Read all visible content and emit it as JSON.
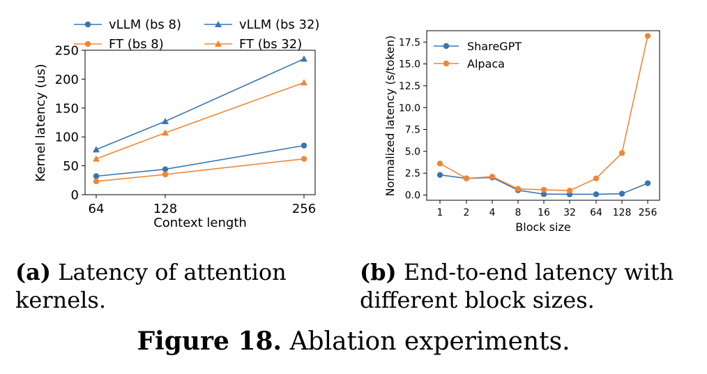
{
  "chart_data": [
    {
      "type": "line",
      "xlabel": "Context length",
      "ylabel": "Kernel latency (us)",
      "categories": [
        "64",
        "128",
        "256"
      ],
      "ylim": [
        0,
        250
      ],
      "yticks": [
        "0",
        "50",
        "100",
        "150",
        "200",
        "250"
      ],
      "series": [
        {
          "name": "vLLM (bs 8)",
          "values": [
            32,
            44,
            85
          ],
          "color": "#3b75af",
          "marker": "circle"
        },
        {
          "name": "FT (bs 8)",
          "values": [
            23,
            35,
            62
          ],
          "color": "#ef8636",
          "marker": "circle"
        },
        {
          "name": "vLLM (bs 32)",
          "values": [
            78,
            127,
            235
          ],
          "color": "#3b75af",
          "marker": "triangle"
        },
        {
          "name": "FT (bs 32)",
          "values": [
            62,
            107,
            194
          ],
          "color": "#ef8636",
          "marker": "triangle"
        }
      ],
      "legend": "top, outside (2 columns)"
    },
    {
      "type": "line",
      "xlabel": "Block size",
      "ylabel": "Normalized latency (s/token)",
      "categories": [
        "1",
        "2",
        "4",
        "8",
        "16",
        "32",
        "64",
        "128",
        "256"
      ],
      "ylim": [
        -0.6,
        18.8
      ],
      "yticks": [
        "0.0",
        "2.5",
        "5.0",
        "7.5",
        "10.0",
        "12.5",
        "15.0",
        "17.5"
      ],
      "series": [
        {
          "name": "ShareGPT",
          "values": [
            2.3,
            1.9,
            2.0,
            0.55,
            0.1,
            0.08,
            0.08,
            0.15,
            1.35
          ],
          "color": "#3b75af",
          "marker": "circle"
        },
        {
          "name": "Alpaca",
          "values": [
            3.6,
            1.9,
            2.1,
            0.7,
            0.6,
            0.5,
            1.9,
            4.8,
            18.2
          ],
          "color": "#ef8636",
          "marker": "circle"
        }
      ],
      "legend": "top-left"
    }
  ],
  "captions": {
    "a_label": "(a)",
    "a_text": "Latency of attention kernels.",
    "b_label": "(b)",
    "b_text": "End-to-end latency with different block sizes.",
    "fig_label": "Figure 18.",
    "fig_text": "Ablation experiments."
  }
}
